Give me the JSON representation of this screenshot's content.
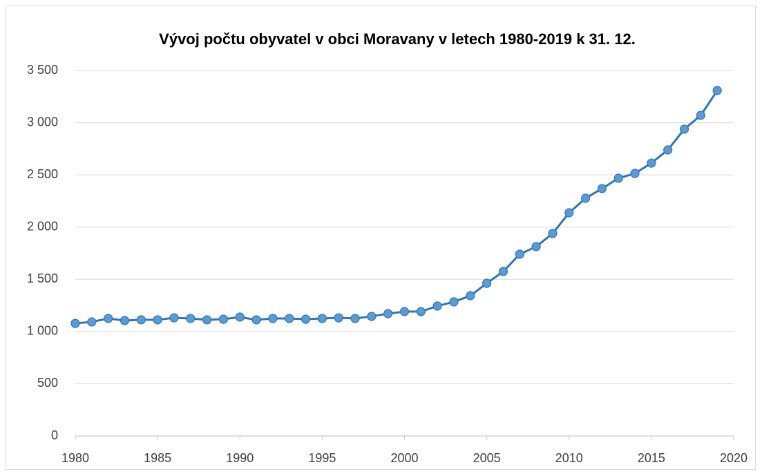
{
  "chart_data": {
    "type": "line",
    "title": "Vývoj počtu obyvatel v obci Moravany v letech 1980-2019 k 31. 12.",
    "x": [
      1980,
      1981,
      1982,
      1983,
      1984,
      1985,
      1986,
      1987,
      1988,
      1989,
      1990,
      1991,
      1992,
      1993,
      1994,
      1995,
      1996,
      1997,
      1998,
      1999,
      2000,
      2001,
      2002,
      2003,
      2004,
      2005,
      2006,
      2007,
      2008,
      2009,
      2010,
      2011,
      2012,
      2013,
      2014,
      2015,
      2016,
      2017,
      2018,
      2019
    ],
    "series": [
      {
        "color": "#2e75b6",
        "marker_color": "#5b9bd5",
        "values": [
          1078,
          1092,
          1125,
          1105,
          1112,
          1112,
          1131,
          1125,
          1112,
          1118,
          1138,
          1112,
          1125,
          1125,
          1118,
          1125,
          1131,
          1125,
          1145,
          1171,
          1191,
          1191,
          1244,
          1284,
          1343,
          1462,
          1575,
          1740,
          1813,
          1939,
          2137,
          2276,
          2369,
          2468,
          2514,
          2613,
          2739,
          2938,
          3070,
          3308
        ]
      }
    ],
    "xlim": [
      1980,
      2020
    ],
    "xticks": [
      1980,
      1985,
      1990,
      1995,
      2000,
      2005,
      2010,
      2015,
      2020
    ],
    "ylim": [
      0,
      3500
    ],
    "yticks": [
      0,
      500,
      {
        "value": 1000,
        "label": "1 000"
      },
      {
        "value": 1500,
        "label": "1 500"
      },
      {
        "value": 2000,
        "label": "2 000"
      },
      {
        "value": 2500,
        "label": "2 500"
      },
      {
        "value": 3000,
        "label": "3 000"
      },
      {
        "value": 3500,
        "label": "3 500"
      }
    ],
    "grid": true
  }
}
